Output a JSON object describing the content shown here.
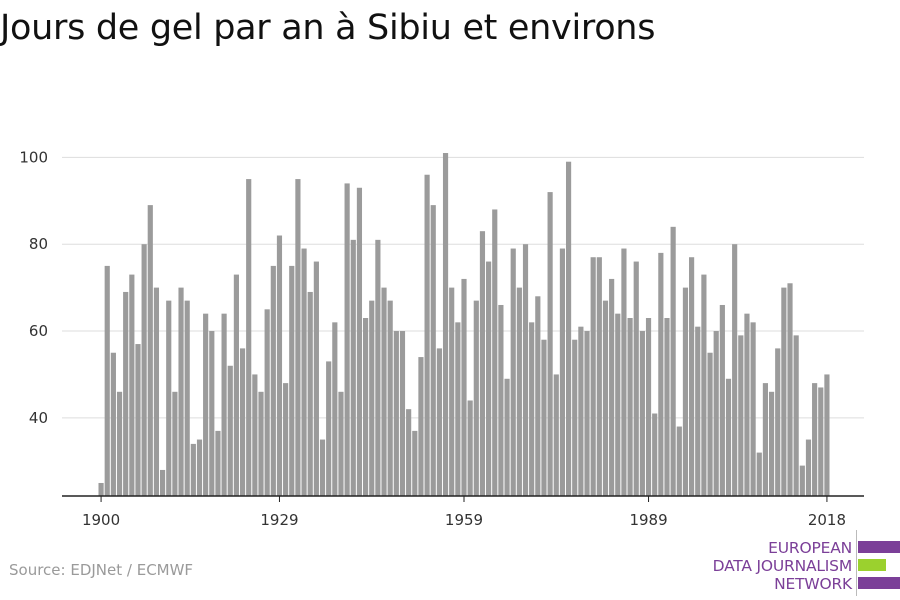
{
  "title": "Jours de gel par an à Sibiu et environs",
  "source": "Source: EDJNet / ECMWF",
  "logo": {
    "line1": "EUROPEAN",
    "line2": "DATA JOURNALISM",
    "line3": "NETWORK",
    "colors": {
      "purple": "#7b3f98",
      "green": "#9bd12e"
    }
  },
  "colors": {
    "bar": "#9b9b9b",
    "grid": "#dddddd",
    "axis": "#222222",
    "tick_label": "#333333"
  },
  "chart_data": {
    "type": "bar",
    "title": "Jours de gel par an à Sibiu et environs",
    "xlabel": "",
    "ylabel": "",
    "ylim": [
      22,
      104
    ],
    "yticks": [
      40,
      60,
      80,
      100
    ],
    "xticks": [
      1900,
      1929,
      1959,
      1989,
      2018
    ],
    "grid": true,
    "legend": "none",
    "x": [
      1900,
      1901,
      1902,
      1903,
      1904,
      1905,
      1906,
      1907,
      1908,
      1909,
      1910,
      1911,
      1912,
      1913,
      1914,
      1915,
      1916,
      1917,
      1918,
      1919,
      1920,
      1921,
      1922,
      1923,
      1924,
      1925,
      1926,
      1927,
      1928,
      1929,
      1930,
      1931,
      1932,
      1933,
      1934,
      1935,
      1936,
      1937,
      1938,
      1939,
      1940,
      1941,
      1942,
      1943,
      1944,
      1945,
      1946,
      1947,
      1948,
      1949,
      1950,
      1951,
      1952,
      1953,
      1954,
      1955,
      1956,
      1957,
      1958,
      1959,
      1960,
      1961,
      1962,
      1963,
      1964,
      1965,
      1966,
      1967,
      1968,
      1969,
      1970,
      1971,
      1972,
      1973,
      1974,
      1975,
      1976,
      1977,
      1978,
      1979,
      1980,
      1981,
      1982,
      1983,
      1984,
      1985,
      1986,
      1987,
      1988,
      1989,
      1990,
      1991,
      1992,
      1993,
      1994,
      1995,
      1996,
      1997,
      1998,
      1999,
      2000,
      2001,
      2002,
      2003,
      2004,
      2005,
      2006,
      2007,
      2008,
      2009,
      2010,
      2011,
      2012,
      2013,
      2014,
      2015,
      2016,
      2017,
      2018
    ],
    "values": [
      25,
      75,
      55,
      46,
      69,
      73,
      57,
      80,
      89,
      70,
      28,
      67,
      46,
      70,
      67,
      34,
      35,
      64,
      60,
      37,
      64,
      52,
      73,
      56,
      95,
      50,
      46,
      65,
      75,
      82,
      48,
      75,
      95,
      79,
      69,
      76,
      35,
      53,
      62,
      46,
      94,
      81,
      93,
      63,
      67,
      81,
      70,
      67,
      60,
      60,
      42,
      37,
      54,
      96,
      89,
      56,
      101,
      70,
      62,
      72,
      44,
      67,
      83,
      76,
      88,
      66,
      49,
      79,
      70,
      80,
      62,
      68,
      58,
      92,
      50,
      79,
      99,
      58,
      61,
      60,
      77,
      77,
      67,
      72,
      64,
      79,
      63,
      76,
      60,
      63,
      41,
      78,
      63,
      84,
      38,
      70,
      77,
      61,
      73,
      55,
      60,
      66,
      49,
      80,
      59,
      64,
      62,
      32,
      48,
      46,
      56,
      70,
      71,
      59,
      29,
      35,
      48,
      47,
      50
    ]
  }
}
